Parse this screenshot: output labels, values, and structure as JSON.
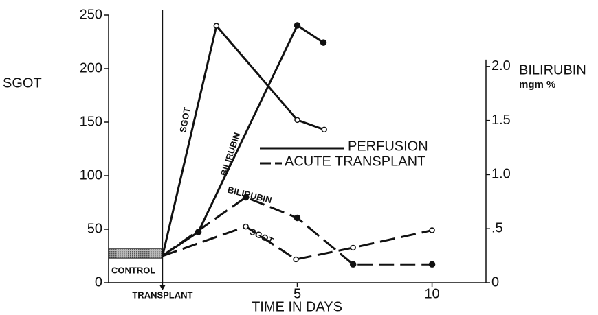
{
  "chart_data": {
    "type": "line",
    "y_label": "SGOT",
    "y2_label": "BILIRUBIN",
    "y2_unit": "mgm %",
    "x_label": "TIME IN DAYS",
    "xlim": [
      -2,
      12
    ],
    "xticks": [
      {
        "value": 0,
        "label": "TRANSPLANT"
      },
      5,
      10
    ],
    "ylim": [
      0,
      250
    ],
    "yticks": [
      0,
      50,
      100,
      150,
      200,
      250
    ],
    "y2lim": [
      0,
      2.475
    ],
    "y2ticks": [
      0,
      {
        "value": 0.5,
        "label": ".5"
      },
      {
        "value": 1,
        "label": "1.0"
      },
      {
        "value": 1.5,
        "label": "1.5"
      },
      {
        "value": 2,
        "label": "2.0"
      }
    ],
    "control": {
      "label": "CONTROL",
      "range": [
        23,
        32
      ]
    },
    "legend": [
      {
        "label": "PERFUSION",
        "dash": "solid"
      },
      {
        "label": "ACUTE TRANSPLANT",
        "dash": "dashed"
      }
    ],
    "series": [
      {
        "name": "SGOT",
        "group": "PERFUSION",
        "dash": "solid",
        "marker": "open",
        "color": "#111",
        "x": [
          0,
          2,
          5,
          6
        ],
        "values": [
          25,
          240,
          152,
          143
        ]
      },
      {
        "name": "BILIRUBIN",
        "group": "PERFUSION",
        "dash": "solid",
        "marker": "filled",
        "color": "#111",
        "axis": "y2",
        "x": [
          0,
          1.33,
          5,
          5.97
        ],
        "values": [
          0.25,
          0.47,
          2.38,
          2.22
        ]
      },
      {
        "name": "BILIRUBIN",
        "group": "ACUTE TRANSPLANT",
        "dash": "dashed",
        "marker": "filled",
        "color": "#111",
        "axis": "y2",
        "x": [
          0,
          3.09,
          5,
          7.07,
          10
        ],
        "values": [
          0.25,
          0.79,
          0.6,
          0.17,
          0.17
        ]
      },
      {
        "name": "SGOT",
        "group": "ACUTE TRANSPLANT",
        "dash": "dashed",
        "marker": "open",
        "color": "#111",
        "x": [
          0,
          3.09,
          4.95,
          7.07,
          10
        ],
        "values": [
          25,
          52.5,
          21.8,
          32.7,
          49
        ]
      }
    ]
  }
}
